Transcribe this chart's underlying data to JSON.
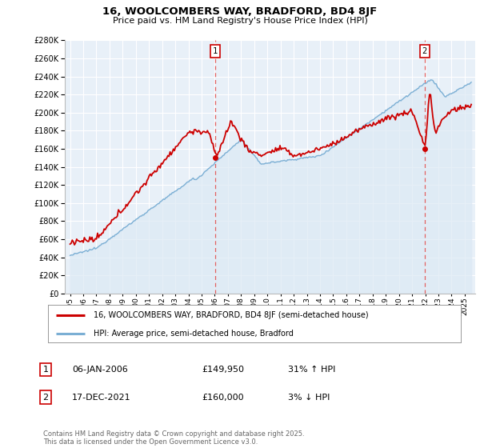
{
  "title": "16, WOOLCOMBERS WAY, BRADFORD, BD4 8JF",
  "subtitle": "Price paid vs. HM Land Registry's House Price Index (HPI)",
  "legend_line1": "16, WOOLCOMBERS WAY, BRADFORD, BD4 8JF (semi-detached house)",
  "legend_line2": "HPI: Average price, semi-detached house, Bradford",
  "annotation1_date": "06-JAN-2006",
  "annotation1_price": "£149,950",
  "annotation1_hpi": "31% ↑ HPI",
  "annotation2_date": "17-DEC-2021",
  "annotation2_price": "£160,000",
  "annotation2_hpi": "3% ↓ HPI",
  "footer": "Contains HM Land Registry data © Crown copyright and database right 2025.\nThis data is licensed under the Open Government Licence v3.0.",
  "red_color": "#cc0000",
  "blue_color": "#7bafd4",
  "blue_fill": "#dce9f5",
  "vline_color": "#e06060",
  "background_color": "#ffffff",
  "grid_color": "#cccccc",
  "ylim": [
    0,
    280000
  ],
  "sale1_x": 2006.04,
  "sale2_x": 2021.96
}
